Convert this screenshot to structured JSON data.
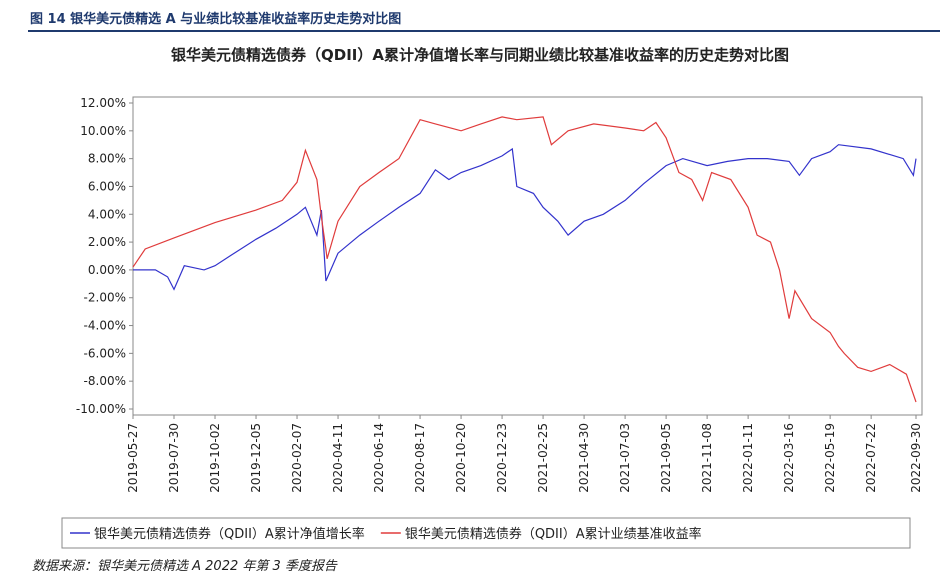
{
  "figure_label": "图 14 银华美元债精选 A 与业绩比较基准收益率历史走势对比图",
  "source": "数据来源：银华美元债精选 A 2022 年第 3 季度报告",
  "chart_data": {
    "type": "line",
    "title": "银华美元债精选债券（QDII）A累计净值增长率与同期业绩比较基准收益率的历史走势对比图",
    "ylim": [
      -10,
      12
    ],
    "yticks": [
      {
        "value": 12,
        "label": "12.00%"
      },
      {
        "value": 10,
        "label": "10.00%"
      },
      {
        "value": 8,
        "label": "8.00%"
      },
      {
        "value": 6,
        "label": "6.00%"
      },
      {
        "value": 4,
        "label": "4.00%"
      },
      {
        "value": 2,
        "label": "2.00%"
      },
      {
        "value": 0,
        "label": "0.00%"
      },
      {
        "value": -2,
        "label": "-2.00%"
      },
      {
        "value": -4,
        "label": "-4.00%"
      },
      {
        "value": -6,
        "label": "-6.00%"
      },
      {
        "value": -8,
        "label": "-8.00%"
      },
      {
        "value": -10,
        "label": "-10.00%"
      }
    ],
    "xlim": [
      "2019-05-27",
      "2022-09-30"
    ],
    "xticks": [
      "2019-05-27",
      "2019-07-30",
      "2019-10-02",
      "2019-12-05",
      "2020-02-07",
      "2020-04-11",
      "2020-06-14",
      "2020-08-17",
      "2020-10-20",
      "2020-12-23",
      "2021-02-25",
      "2021-04-30",
      "2021-07-03",
      "2021-09-05",
      "2021-11-08",
      "2022-01-11",
      "2022-03-16",
      "2022-05-19",
      "2022-07-22",
      "2022-09-30"
    ],
    "legend": "bottom",
    "series": [
      {
        "name": "银华美元债精选债券（QDII）A累计净值增长率",
        "color": "#3333cc",
        "x": [
          "2019-05-27",
          "2019-07-01",
          "2019-07-20",
          "2019-07-30",
          "2019-08-15",
          "2019-09-15",
          "2019-10-02",
          "2019-11-01",
          "2019-12-05",
          "2020-01-05",
          "2020-02-07",
          "2020-02-20",
          "2020-03-09",
          "2020-03-16",
          "2020-03-23",
          "2020-04-11",
          "2020-05-15",
          "2020-06-14",
          "2020-07-15",
          "2020-08-17",
          "2020-09-10",
          "2020-10-01",
          "2020-10-20",
          "2020-11-20",
          "2020-12-23",
          "2021-01-08",
          "2021-01-15",
          "2021-02-10",
          "2021-02-25",
          "2021-03-20",
          "2021-04-05",
          "2021-04-30",
          "2021-05-30",
          "2021-07-03",
          "2021-08-01",
          "2021-09-05",
          "2021-10-01",
          "2021-11-08",
          "2021-12-10",
          "2022-01-11",
          "2022-02-10",
          "2022-03-16",
          "2022-04-01",
          "2022-04-20",
          "2022-05-19",
          "2022-06-01",
          "2022-07-22",
          "2022-09-10",
          "2022-09-26",
          "2022-09-30"
        ],
        "values": [
          0,
          0,
          -0.5,
          -1.4,
          0.3,
          0,
          0.3,
          1.2,
          2.2,
          3.0,
          4.0,
          4.5,
          2.5,
          4.3,
          -0.8,
          1.2,
          2.5,
          3.5,
          4.5,
          5.5,
          7.2,
          6.5,
          7.0,
          7.5,
          8.2,
          8.7,
          6.0,
          5.5,
          4.5,
          3.5,
          2.5,
          3.5,
          4.0,
          5.0,
          6.2,
          7.5,
          8.0,
          7.5,
          7.8,
          8.0,
          8.0,
          7.8,
          6.8,
          8.0,
          8.5,
          9.0,
          8.7,
          8.0,
          6.8,
          8.0
        ]
      },
      {
        "name": "银华美元债精选债券（QDII）A累计业绩基准收益率",
        "color": "#e03c3c",
        "x": [
          "2019-05-27",
          "2019-06-15",
          "2019-07-30",
          "2019-10-02",
          "2019-12-05",
          "2020-01-15",
          "2020-02-07",
          "2020-02-20",
          "2020-03-09",
          "2020-03-16",
          "2020-03-23",
          "2020-03-25",
          "2020-04-11",
          "2020-05-15",
          "2020-06-14",
          "2020-07-15",
          "2020-08-17",
          "2020-09-10",
          "2020-10-20",
          "2020-11-20",
          "2020-12-23",
          "2021-01-15",
          "2021-02-25",
          "2021-03-10",
          "2021-04-05",
          "2021-05-15",
          "2021-07-03",
          "2021-08-01",
          "2021-08-20",
          "2021-09-05",
          "2021-09-25",
          "2021-10-15",
          "2021-11-01",
          "2021-11-15",
          "2021-12-15",
          "2022-01-11",
          "2022-01-25",
          "2022-02-15",
          "2022-03-01",
          "2022-03-16",
          "2022-03-25",
          "2022-04-20",
          "2022-05-19",
          "2022-06-01",
          "2022-06-10",
          "2022-07-01",
          "2022-07-22",
          "2022-08-20",
          "2022-09-15",
          "2022-09-30"
        ],
        "values": [
          0.2,
          1.5,
          2.3,
          3.4,
          4.3,
          5.0,
          6.3,
          8.6,
          6.5,
          3.8,
          1.5,
          0.8,
          3.5,
          6.0,
          7.0,
          8.0,
          10.8,
          10.5,
          10.0,
          10.5,
          11.0,
          10.8,
          11.0,
          9.0,
          10.0,
          10.5,
          10.2,
          10.0,
          10.6,
          9.5,
          7.0,
          6.5,
          5.0,
          7.0,
          6.5,
          4.5,
          2.5,
          2.0,
          0.0,
          -3.5,
          -1.5,
          -3.5,
          -4.5,
          -5.5,
          -6.0,
          -7.0,
          -7.3,
          -6.8,
          -7.5,
          -9.5
        ]
      }
    ]
  }
}
